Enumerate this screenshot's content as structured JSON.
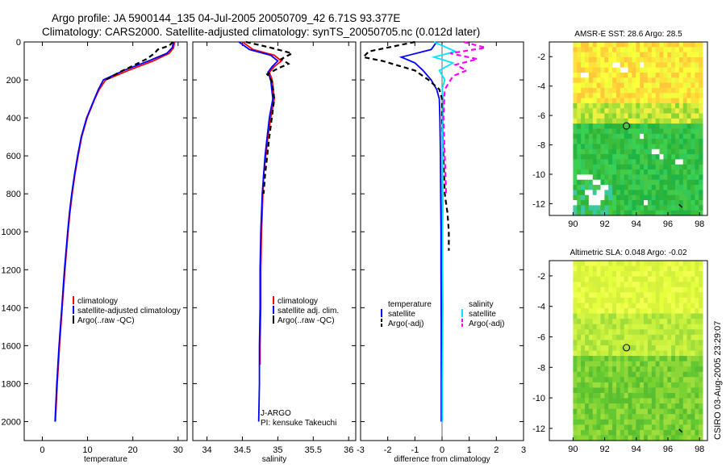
{
  "figure": {
    "title_line1": "Argo profile: JA 5900144_135 04-Jul-2005 20050709_42 6.71S 93.377E",
    "title_line2": "Climatology: CARS2000. Satellite-adjusted climatology: synTS_20050705.nc (0.012d later)",
    "side_stamp": "CSIRO 03-Aug-2005 23:29:07"
  },
  "colors": {
    "climatology": "#ff0000",
    "satellite": "#0000ff",
    "argo": "#000000",
    "salinity_satellite": "#00e5ff",
    "salinity_argo": "#ff00ff"
  },
  "chart_data": [
    {
      "id": "temperature",
      "type": "line",
      "xlabel": "temperature",
      "xlim": [
        -4,
        32
      ],
      "ylim": [
        0,
        2100
      ],
      "xticks": [
        0,
        10,
        20,
        30
      ],
      "yticks": [
        0,
        200,
        400,
        600,
        800,
        1000,
        1200,
        1400,
        1600,
        1800,
        2000
      ],
      "legend": [
        "climatology",
        "satellite-adjusted climatology",
        "Argo(..raw -QC)"
      ],
      "series": [
        {
          "name": "climatology",
          "color": "#ff0000",
          "dash": "",
          "depth": [
            0,
            30,
            60,
            100,
            150,
            200,
            250,
            300,
            400,
            500,
            600,
            700,
            800,
            900,
            1000,
            1200,
            1400,
            1600,
            1800,
            2000
          ],
          "values": [
            29.2,
            29.0,
            28.0,
            24.5,
            19.0,
            14.0,
            12.6,
            11.6,
            9.9,
            8.7,
            7.9,
            7.2,
            6.6,
            6.1,
            5.7,
            5.0,
            4.4,
            3.8,
            3.3,
            2.9
          ]
        },
        {
          "name": "satellite-adjusted climatology",
          "color": "#0000ff",
          "dash": "",
          "depth": [
            0,
            30,
            60,
            100,
            150,
            200,
            250,
            300,
            400,
            500,
            600,
            700,
            800,
            900,
            1000,
            1200,
            1400,
            1600,
            1800,
            2000
          ],
          "values": [
            29.0,
            28.7,
            27.5,
            23.5,
            18.0,
            13.5,
            12.4,
            11.5,
            9.8,
            8.6,
            7.8,
            7.1,
            6.5,
            6.0,
            5.6,
            4.9,
            4.3,
            3.7,
            3.2,
            2.8
          ]
        },
        {
          "name": "Argo(..raw -QC)",
          "color": "#000000",
          "dash": "6,4",
          "depth": [
            0,
            20,
            40,
            60,
            90,
            120,
            160,
            200
          ],
          "values": [
            28.9,
            28.0,
            25.5,
            24.8,
            23.0,
            20.5,
            17.0,
            14.0
          ]
        }
      ]
    },
    {
      "id": "salinity",
      "type": "line",
      "xlabel": "salinity",
      "xlim": [
        33.8,
        36.1
      ],
      "ylim": [
        0,
        2100
      ],
      "xticks": [
        34,
        34.5,
        35,
        35.5,
        36
      ],
      "legend": [
        "climatology",
        "satellite adj. clim.",
        "Argo(..raw -QC)"
      ],
      "annotation_line1": "J-ARGO",
      "annotation_line2": "PI: kensuke Takeuchi",
      "series": [
        {
          "name": "climatology",
          "color": "#ff0000",
          "dash": "",
          "depth": [
            0,
            40,
            70,
            100,
            130,
            160,
            200,
            300,
            400,
            500,
            600,
            700,
            800,
            900,
            1000,
            1200,
            1400,
            1600,
            1700
          ],
          "values": [
            34.5,
            34.65,
            34.95,
            35.05,
            34.95,
            34.88,
            34.92,
            34.95,
            34.9,
            34.86,
            34.83,
            34.8,
            34.79,
            34.78,
            34.77,
            34.76,
            34.76,
            34.75,
            34.75
          ]
        },
        {
          "name": "satellite adj. clim.",
          "color": "#0000ff",
          "dash": "",
          "depth": [
            0,
            40,
            70,
            100,
            130,
            160,
            200,
            300,
            400,
            500,
            600,
            700,
            800,
            900,
            1000,
            1200,
            1400,
            1600,
            1800,
            2000
          ],
          "values": [
            34.45,
            34.6,
            34.9,
            35.0,
            34.92,
            34.86,
            34.9,
            34.93,
            34.88,
            34.85,
            34.82,
            34.8,
            34.78,
            34.77,
            34.76,
            34.75,
            34.75,
            34.74,
            34.74,
            34.73
          ]
        },
        {
          "name": "Argo(..raw -QC)",
          "color": "#000000",
          "dash": "6,4",
          "depth": [
            0,
            30,
            60,
            90,
            115,
            140,
            170,
            210,
            300,
            500,
            700,
            800
          ],
          "values": [
            34.55,
            34.9,
            35.2,
            35.05,
            35.15,
            35.0,
            34.85,
            34.92,
            34.95,
            34.88,
            34.82,
            34.8
          ]
        }
      ]
    },
    {
      "id": "difference",
      "type": "line",
      "xlabel": "difference from climatology",
      "xlim": [
        -3,
        3
      ],
      "ylim": [
        0,
        2100
      ],
      "xticks": [
        -3,
        -2,
        -1,
        0,
        1,
        2,
        3
      ],
      "legend_left_header": "temperature",
      "legend_left": [
        "satellite",
        "Argo(-adj)"
      ],
      "legend_right_header": "salinity",
      "legend_right": [
        "satellite",
        "Argo(-adj)"
      ],
      "series": [
        {
          "name": "temperature satellite",
          "color": "#0000ff",
          "dash": "",
          "depth": [
            0,
            40,
            80,
            110,
            150,
            200,
            250,
            300,
            400,
            600,
            800,
            1000,
            1200,
            1500,
            1800,
            2000
          ],
          "values": [
            -0.2,
            -0.4,
            -1.5,
            -1.0,
            -0.7,
            -0.4,
            -0.2,
            -0.1,
            -0.08,
            -0.06,
            -0.05,
            -0.04,
            -0.04,
            -0.03,
            -0.03,
            -0.03
          ]
        },
        {
          "name": "temperature Argo(-adj)",
          "color": "#000000",
          "dash": "6,4",
          "depth": [
            0,
            50,
            80,
            100,
            150,
            200,
            250,
            300,
            400,
            600,
            800,
            850,
            900,
            1000,
            1100
          ],
          "values": [
            -1.0,
            -2.7,
            -2.9,
            -2.2,
            -1.0,
            -0.5,
            -0.1,
            0.0,
            0.0,
            0.05,
            0.1,
            0.15,
            0.2,
            0.25,
            0.25
          ]
        },
        {
          "name": "salinity satellite",
          "color": "#00e5ff",
          "dash": "",
          "depth": [
            0,
            50,
            80,
            110,
            150,
            200,
            250,
            300,
            400,
            600,
            800,
            1000,
            1200,
            1400,
            1600,
            1800,
            2000
          ],
          "values": [
            -0.3,
            0.5,
            -0.3,
            0.4,
            -0.1,
            0.1,
            0.0,
            0.05,
            0.03,
            0.02,
            0.03,
            0.02,
            0.02,
            0.03,
            0.02,
            0.01,
            0.01
          ]
        },
        {
          "name": "salinity Argo(-adj)",
          "color": "#ff00ff",
          "dash": "6,4",
          "depth": [
            0,
            30,
            60,
            90,
            120,
            150,
            180,
            250,
            400,
            600,
            800
          ],
          "values": [
            0.8,
            1.6,
            0.3,
            1.3,
            0.5,
            0.9,
            0.4,
            0.1,
            0.05,
            0.1,
            0.15
          ]
        }
      ]
    }
  ],
  "maps": [
    {
      "id": "sst",
      "title": "AMSR-E SST: 28.6 Argo: 28.5",
      "type": "heatmap",
      "xlim": [
        88.5,
        98.5
      ],
      "ylim": [
        -12.8,
        -1
      ],
      "xticks": [
        90,
        92,
        94,
        96,
        98
      ],
      "yticks": [
        -2,
        -4,
        -6,
        -8,
        -10,
        -12
      ],
      "data_lon_range": [
        90,
        98.2
      ],
      "data_lat_range": [
        -12.8,
        -1
      ],
      "marker": [
        93.377,
        -6.71
      ]
    },
    {
      "id": "sla",
      "title": "Altimetric SLA: 0.048 Argo: -0.02",
      "type": "heatmap",
      "xlim": [
        88.5,
        98.5
      ],
      "ylim": [
        -12.8,
        -1
      ],
      "xticks": [
        90,
        92,
        94,
        96,
        98
      ],
      "yticks": [
        -2,
        -4,
        -6,
        -8,
        -10,
        -12
      ],
      "data_lon_range": [
        90,
        98.2
      ],
      "data_lat_range": [
        -12.8,
        -1
      ],
      "marker": [
        93.377,
        -6.71
      ]
    }
  ]
}
